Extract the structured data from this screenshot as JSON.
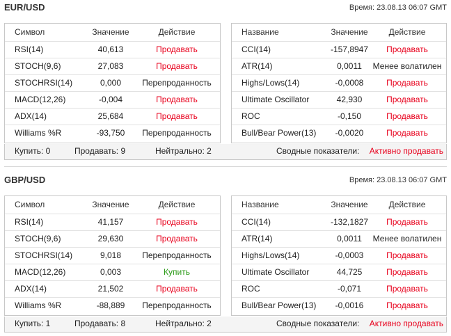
{
  "colors": {
    "sell": "#e8001c",
    "buy": "#2a9a16",
    "border": "#c8c8c8"
  },
  "left_headers": [
    "Символ",
    "Значение",
    "Действие"
  ],
  "right_headers": [
    "Название",
    "Значение",
    "Действие"
  ],
  "blocks": [
    {
      "pair": "EUR/USD",
      "time": "Время: 23.08.13 06:07 GMT",
      "left_rows": [
        {
          "symbol": "RSI(14)",
          "value": "40,613",
          "action": "Продавать",
          "tone": "sell"
        },
        {
          "symbol": "STOCH(9,6)",
          "value": "27,083",
          "action": "Продавать",
          "tone": "sell"
        },
        {
          "symbol": "STOCHRSI(14)",
          "value": "0,000",
          "action": "Перепроданность",
          "tone": "neutral"
        },
        {
          "symbol": "MACD(12,26)",
          "value": "-0,004",
          "action": "Продавать",
          "tone": "sell"
        },
        {
          "symbol": "ADX(14)",
          "value": "25,684",
          "action": "Продавать",
          "tone": "sell"
        },
        {
          "symbol": "Williams %R",
          "value": "-93,750",
          "action": "Перепроданность",
          "tone": "neutral"
        }
      ],
      "right_rows": [
        {
          "name": "CCI(14)",
          "value": "-157,8947",
          "action": "Продавать",
          "tone": "sell"
        },
        {
          "name": "ATR(14)",
          "value": "0,0011",
          "action": "Менее волатилен",
          "tone": "neutral"
        },
        {
          "name": "Highs/Lows(14)",
          "value": "-0,0008",
          "action": "Продавать",
          "tone": "sell"
        },
        {
          "name": "Ultimate Oscillator",
          "value": "42,930",
          "action": "Продавать",
          "tone": "sell"
        },
        {
          "name": "ROC",
          "value": "-0,150",
          "action": "Продавать",
          "tone": "sell"
        },
        {
          "name": "Bull/Bear Power(13)",
          "value": "-0,0020",
          "action": "Продавать",
          "tone": "sell"
        }
      ],
      "summary": {
        "buy": "Купить: 0",
        "sell": "Продавать: 9",
        "neutral": "Нейтрально: 2",
        "overall_label": "Сводные показатели:",
        "overall_value": "Активно продавать"
      }
    },
    {
      "pair": "GBP/USD",
      "time": "Время: 23.08.13 06:07 GMT",
      "left_rows": [
        {
          "symbol": "RSI(14)",
          "value": "41,157",
          "action": "Продавать",
          "tone": "sell"
        },
        {
          "symbol": "STOCH(9,6)",
          "value": "29,630",
          "action": "Продавать",
          "tone": "sell"
        },
        {
          "symbol": "STOCHRSI(14)",
          "value": "9,018",
          "action": "Перепроданность",
          "tone": "neutral"
        },
        {
          "symbol": "MACD(12,26)",
          "value": "0,003",
          "action": "Купить",
          "tone": "buy"
        },
        {
          "symbol": "ADX(14)",
          "value": "21,502",
          "action": "Продавать",
          "tone": "sell"
        },
        {
          "symbol": "Williams %R",
          "value": "-88,889",
          "action": "Перепроданность",
          "tone": "neutral"
        }
      ],
      "right_rows": [
        {
          "name": "CCI(14)",
          "value": "-132,1827",
          "action": "Продавать",
          "tone": "sell"
        },
        {
          "name": "ATR(14)",
          "value": "0,0011",
          "action": "Менее волатилен",
          "tone": "neutral"
        },
        {
          "name": "Highs/Lows(14)",
          "value": "-0,0003",
          "action": "Продавать",
          "tone": "sell"
        },
        {
          "name": "Ultimate Oscillator",
          "value": "44,725",
          "action": "Продавать",
          "tone": "sell"
        },
        {
          "name": "ROC",
          "value": "-0,071",
          "action": "Продавать",
          "tone": "sell"
        },
        {
          "name": "Bull/Bear Power(13)",
          "value": "-0,0016",
          "action": "Продавать",
          "tone": "sell"
        }
      ],
      "summary": {
        "buy": "Купить: 1",
        "sell": "Продавать: 8",
        "neutral": "Нейтрально: 2",
        "overall_label": "Сводные показатели:",
        "overall_value": "Активно продавать"
      }
    }
  ]
}
